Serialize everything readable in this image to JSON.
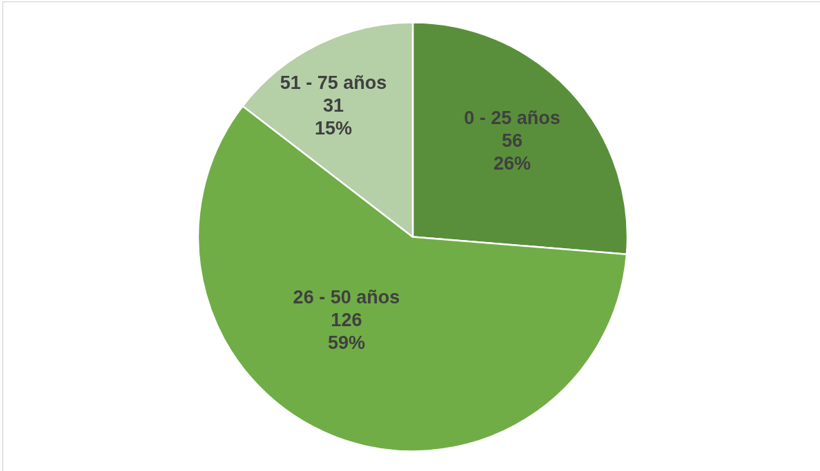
{
  "chart_data": {
    "type": "pie",
    "categories": [
      "0 - 25 años",
      "26 - 50 años",
      "51 - 75 años"
    ],
    "values": [
      56,
      126,
      31
    ],
    "colors": [
      "#598f3a",
      "#70ad47",
      "#b5cfa7"
    ],
    "value_labels": [
      "56\n26%",
      "126\n59%",
      "31\n15%"
    ]
  }
}
